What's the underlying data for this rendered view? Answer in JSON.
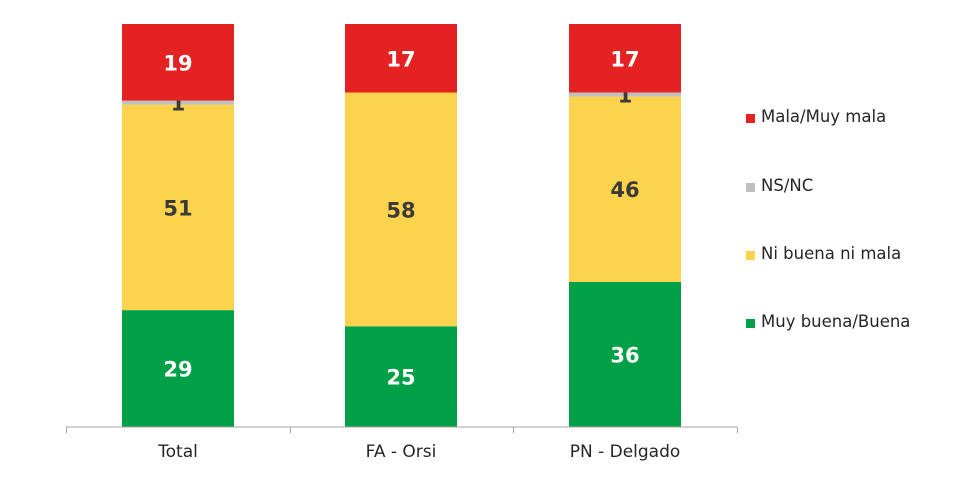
{
  "chart_data": {
    "type": "bar",
    "stacked": true,
    "categories": [
      "Total",
      "FA -  Orsi",
      "PN - Delgado"
    ],
    "series": [
      {
        "name": "Muy buena/Buena",
        "color": "#00A046",
        "label_color": "#ffffff",
        "values": [
          29,
          25,
          36
        ]
      },
      {
        "name": "Ni buena ni mala",
        "color": "#FCD34D",
        "label_color": "#3a3a3a",
        "values": [
          51,
          58,
          46
        ]
      },
      {
        "name": "NS/NC",
        "color": "#C0C0C0",
        "label_color": "#3a3a3a",
        "values": [
          1,
          0,
          1
        ]
      },
      {
        "name": "Mala/Muy mala",
        "color": "#E52222",
        "label_color": "#ffffff",
        "values": [
          19,
          17,
          17
        ]
      }
    ],
    "legend_order": [
      "Mala/Muy mala",
      "NS/NC",
      "Ni buena ni mala",
      "Muy buena/Buena"
    ],
    "legend_position": "right",
    "axis_color": "#a6a6a6",
    "grid": false,
    "y_axis_visible": false
  }
}
